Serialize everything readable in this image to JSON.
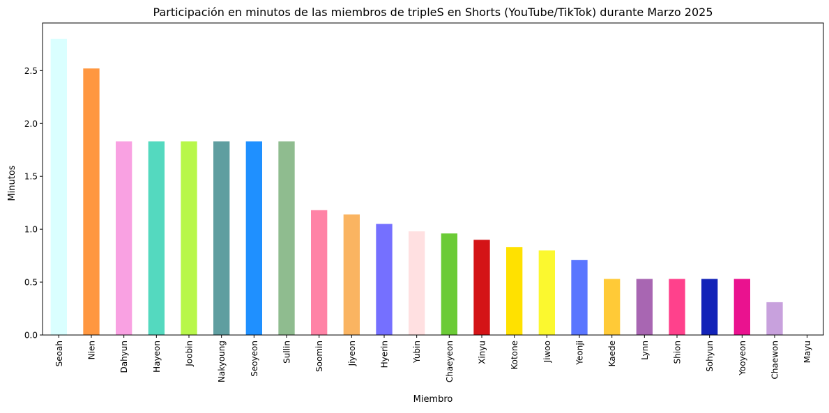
{
  "chart_data": {
    "type": "bar",
    "title": "Participación en minutos de las miembros de tripleS en Shorts (YouTube/TikTok) durante Marzo 2025",
    "xlabel": "Miembro",
    "ylabel": "Minutos",
    "ylim": [
      0,
      2.95
    ],
    "yticks": [
      "0.0",
      "0.5",
      "1.0",
      "1.5",
      "2.0",
      "2.5"
    ],
    "grid": false,
    "legend": "none",
    "categories": [
      "Seoah",
      "Nien",
      "Dahyun",
      "Hayeon",
      "Joobin",
      "Nakyoung",
      "Seoyeon",
      "Sullin",
      "Soomin",
      "Jiyeon",
      "Hyerin",
      "Yubin",
      "Chaeyeon",
      "Xinyu",
      "Kotone",
      "Jiwoo",
      "Yeonji",
      "Kaede",
      "Lynn",
      "Shion",
      "Sohyun",
      "Yooyeon",
      "Chaewon",
      "Mayu"
    ],
    "values": [
      2.8,
      2.52,
      1.83,
      1.83,
      1.83,
      1.83,
      1.83,
      1.83,
      1.18,
      1.14,
      1.05,
      0.98,
      0.96,
      0.9,
      0.83,
      0.8,
      0.71,
      0.53,
      0.53,
      0.53,
      0.53,
      0.53,
      0.31,
      0.0
    ],
    "colors": [
      "#DAFFFF",
      "#FF9740",
      "#F9A1E2",
      "#54D9BF",
      "#B8F74A",
      "#5F9EA0",
      "#1F90FF",
      "#8FBC8F",
      "#FF83A6",
      "#FAB461",
      "#7570FF",
      "#FFE0E1",
      "#6BCB36",
      "#D41417",
      "#FFE100",
      "#FBF82F",
      "#5A76FF",
      "#FFCA37",
      "#A866B2",
      "#FF418C",
      "#1323B8",
      "#EA128F",
      "#C8A1DD",
      "#FDE5E3"
    ]
  }
}
